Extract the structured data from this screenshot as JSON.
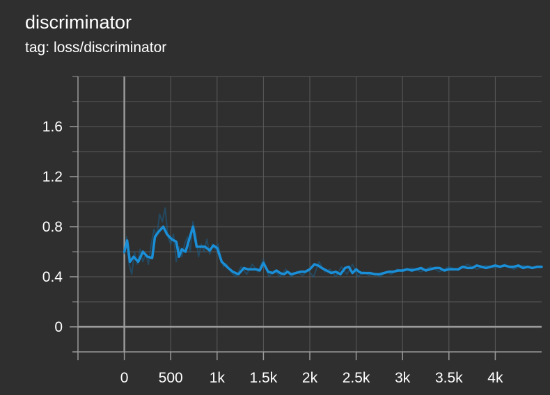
{
  "title": "discriminator",
  "tag": {
    "key": "tag:",
    "value": "loss/discriminator"
  },
  "colors": {
    "background": "#2f2f2f",
    "grid": "#5a5a5a",
    "axis": "#9a9a9a",
    "series_smoothed": "#1a8fd8",
    "series_raw": "#1a5f8a"
  },
  "chart_data": {
    "type": "line",
    "title": "discriminator",
    "xlabel": "",
    "ylabel": "",
    "xlim": [
      -500,
      4500
    ],
    "ylim": [
      -0.2,
      2.0
    ],
    "grid": true,
    "x_ticks": [
      0,
      500,
      1000,
      1500,
      2000,
      2500,
      3000,
      3500,
      4000
    ],
    "x_tick_labels": [
      "0",
      "500",
      "1k",
      "1.5k",
      "2k",
      "2.5k",
      "3k",
      "3.5k",
      "4k"
    ],
    "y_ticks": [
      0,
      0.4,
      0.8,
      1.2,
      1.6
    ],
    "y_tick_labels": [
      "0",
      "0.4",
      "0.8",
      "1.2",
      "1.6"
    ],
    "series": [
      {
        "kind": "smoothed",
        "x": [
          0,
          30,
          60,
          100,
          150,
          200,
          250,
          300,
          330,
          370,
          420,
          460,
          510,
          560,
          590,
          620,
          660,
          700,
          740,
          780,
          820,
          870,
          920,
          960,
          1000,
          1050,
          1080,
          1120,
          1170,
          1230,
          1290,
          1330,
          1380,
          1420,
          1460,
          1500,
          1550,
          1600,
          1640,
          1680,
          1720,
          1760,
          1800,
          1850,
          1900,
          1950,
          2000,
          2050,
          2090,
          2130,
          2180,
          2230,
          2280,
          2330,
          2380,
          2420,
          2460,
          2500,
          2530,
          2560,
          2600,
          2650,
          2700,
          2750,
          2800,
          2850,
          2900,
          2950,
          3000,
          3050,
          3100,
          3150,
          3200,
          3250,
          3300,
          3350,
          3400,
          3450,
          3500,
          3550,
          3600,
          3650,
          3700,
          3750,
          3800,
          3850,
          3900,
          3950,
          4000,
          4050,
          4100,
          4150,
          4200,
          4250,
          4300,
          4350,
          4400,
          4450,
          4500
        ],
        "y": [
          0.6,
          0.69,
          0.52,
          0.56,
          0.52,
          0.6,
          0.56,
          0.55,
          0.72,
          0.76,
          0.8,
          0.74,
          0.7,
          0.68,
          0.56,
          0.62,
          0.6,
          0.7,
          0.8,
          0.64,
          0.64,
          0.64,
          0.61,
          0.65,
          0.63,
          0.52,
          0.5,
          0.47,
          0.44,
          0.42,
          0.47,
          0.46,
          0.46,
          0.46,
          0.45,
          0.51,
          0.44,
          0.43,
          0.45,
          0.43,
          0.42,
          0.44,
          0.42,
          0.43,
          0.44,
          0.44,
          0.46,
          0.5,
          0.49,
          0.47,
          0.45,
          0.43,
          0.44,
          0.42,
          0.47,
          0.48,
          0.43,
          0.46,
          0.44,
          0.43,
          0.43,
          0.43,
          0.42,
          0.42,
          0.43,
          0.44,
          0.44,
          0.45,
          0.45,
          0.46,
          0.45,
          0.46,
          0.47,
          0.45,
          0.46,
          0.47,
          0.47,
          0.45,
          0.46,
          0.46,
          0.46,
          0.48,
          0.47,
          0.47,
          0.49,
          0.48,
          0.47,
          0.48,
          0.49,
          0.48,
          0.49,
          0.48,
          0.48,
          0.49,
          0.47,
          0.48,
          0.47,
          0.48,
          0.48
        ]
      },
      {
        "kind": "raw",
        "x": [
          0,
          25,
          50,
          80,
          110,
          140,
          170,
          200,
          230,
          260,
          290,
          320,
          350,
          380,
          410,
          440,
          470,
          500,
          530,
          560,
          590,
          620,
          650,
          680,
          710,
          740,
          770,
          800,
          830,
          860,
          890,
          920,
          950,
          980,
          1010,
          1040,
          1070,
          1100,
          1150,
          1200,
          1260,
          1320,
          1380,
          1440,
          1500,
          1560,
          1620,
          1680,
          1740,
          1800,
          1860,
          1920,
          1980,
          2040,
          2100,
          2160,
          2220,
          2280,
          2340,
          2400,
          2460,
          2520,
          2580,
          2640,
          2700,
          2760,
          2820,
          2880,
          2940,
          3000,
          3100,
          3200,
          3300,
          3400,
          3500,
          3600,
          3700,
          3800,
          3900,
          4000,
          4100,
          4200,
          4300,
          4400,
          4500
        ],
        "y": [
          0.58,
          0.72,
          0.5,
          0.42,
          0.6,
          0.5,
          0.62,
          0.52,
          0.58,
          0.5,
          0.66,
          0.78,
          0.72,
          0.9,
          0.84,
          0.95,
          0.72,
          0.66,
          0.74,
          0.52,
          0.64,
          0.56,
          0.66,
          0.72,
          0.6,
          0.84,
          0.74,
          0.56,
          0.66,
          0.6,
          0.7,
          0.58,
          0.66,
          0.62,
          0.66,
          0.56,
          0.48,
          0.5,
          0.44,
          0.4,
          0.48,
          0.42,
          0.5,
          0.44,
          0.54,
          0.4,
          0.45,
          0.4,
          0.46,
          0.4,
          0.44,
          0.41,
          0.45,
          0.4,
          0.52,
          0.44,
          0.46,
          0.4,
          0.48,
          0.42,
          0.5,
          0.4,
          0.44,
          0.41,
          0.43,
          0.4,
          0.44,
          0.42,
          0.46,
          0.44,
          0.47,
          0.44,
          0.48,
          0.44,
          0.48,
          0.45,
          0.5,
          0.46,
          0.49,
          0.47,
          0.5,
          0.46,
          0.49,
          0.47,
          0.48
        ]
      }
    ]
  }
}
